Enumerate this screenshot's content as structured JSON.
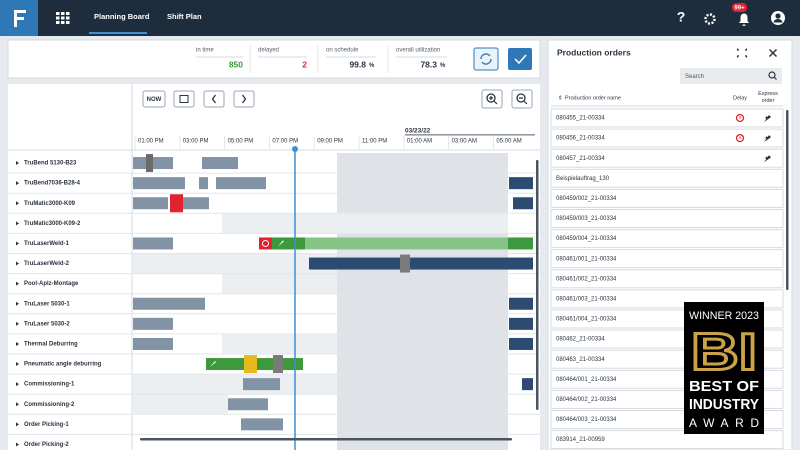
{
  "nav": {
    "tabs": [
      "Planning Board",
      "Shift Plan"
    ],
    "notification_badge": "99+"
  },
  "kpis": [
    {
      "label": "in time",
      "value": 850
    },
    {
      "label": "delayed",
      "value": 2
    },
    {
      "label": "on schedule",
      "value": 99.8,
      "unit": "%"
    },
    {
      "label": "overall utilization",
      "value": 78.3,
      "unit": "%"
    }
  ],
  "toolbar": {
    "now_button": "NOW"
  },
  "timeline": {
    "date": "03/23/22",
    "times": [
      "01:00 PM",
      "03:00 PM",
      "05:00 PM",
      "07:00 PM",
      "09:00 PM",
      "11:00 PM",
      "01:00 AM",
      "03:00 AM",
      "05:00 AM"
    ]
  },
  "resources": [
    "TruBend 5130-B23",
    "TruBend7036-B28-4",
    "TruMatic3000-K09",
    "TruMatic3000-K09-2",
    "TruLaserWeld-1",
    "TruLaserWeld-2",
    "Pool-Aplz-Montage",
    "TruLaser 5030-1",
    "TruLaser 5030-2",
    "Thermal Deburring",
    "Pneumatic angle deburring",
    "Commissioning-1",
    "Commissioning-2",
    "Order Picking-1",
    "Order Picking-2"
  ],
  "orders_panel": {
    "title": "Production orders",
    "search_placeholder": "Search",
    "columns": [
      "Production order name",
      "Delay",
      "Express order"
    ],
    "rows": [
      {
        "name": "080455_21-00334",
        "delay": true,
        "express": true
      },
      {
        "name": "080456_21-00334",
        "delay": true,
        "express": true
      },
      {
        "name": "080457_21-00334",
        "delay": false,
        "express": true
      },
      {
        "name": "Beispielauftrag_130",
        "delay": false,
        "express": false
      },
      {
        "name": "080459/002_21-00334",
        "delay": false,
        "express": false
      },
      {
        "name": "080459/003_21-00334",
        "delay": false,
        "express": false
      },
      {
        "name": "080459/004_21-00334",
        "delay": false,
        "express": false
      },
      {
        "name": "080461/001_21-00334",
        "delay": false,
        "express": false
      },
      {
        "name": "080461/002_21-00334",
        "delay": false,
        "express": false
      },
      {
        "name": "080461/003_21-00334",
        "delay": false,
        "express": false
      },
      {
        "name": "080461/004_21-00334",
        "delay": false,
        "express": false
      },
      {
        "name": "080462_21-00334",
        "delay": false,
        "express": false
      },
      {
        "name": "080463_21-00334",
        "delay": false,
        "express": false
      },
      {
        "name": "080464/001_21-00334",
        "delay": false,
        "express": false
      },
      {
        "name": "080464/002_21-00334",
        "delay": false,
        "express": false
      },
      {
        "name": "080464/003_21-00334",
        "delay": false,
        "express": false
      },
      {
        "name": "083914_21-00959",
        "delay": false,
        "express": false
      }
    ]
  },
  "award": {
    "line1": "WINNER 2023",
    "logo": "BI",
    "line2": "BEST OF",
    "line3": "INDUSTRY",
    "line4": "AWARD"
  }
}
